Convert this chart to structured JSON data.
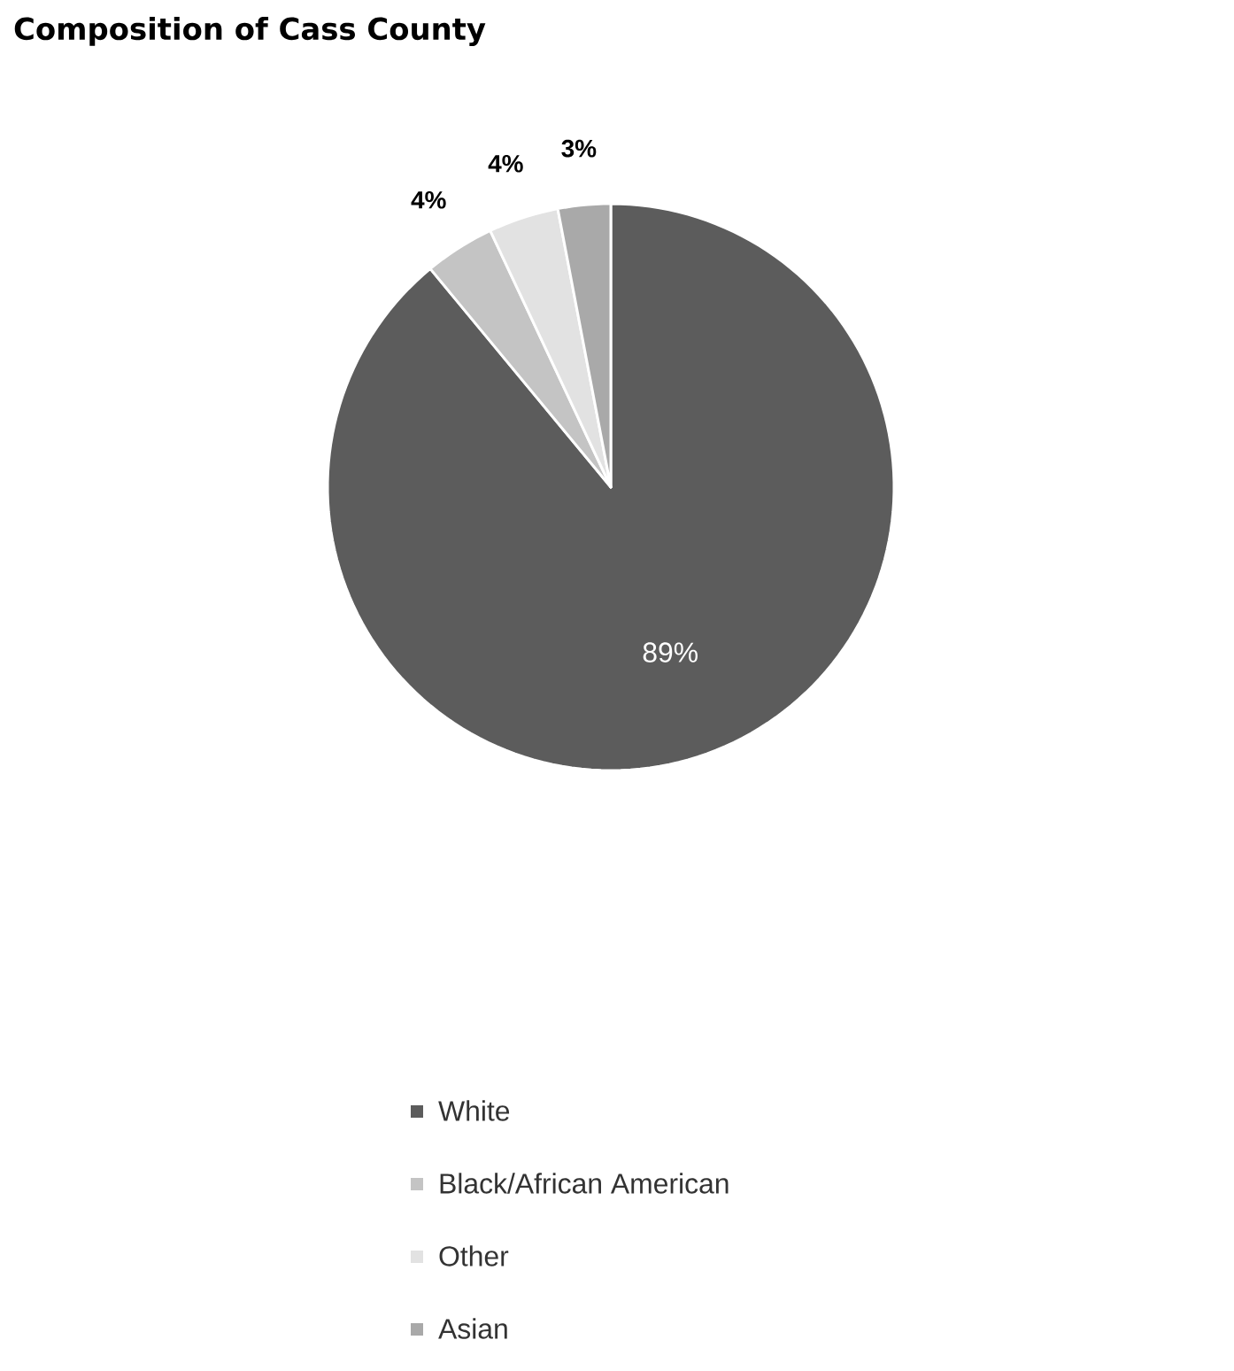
{
  "chart_data": {
    "type": "pie",
    "title": "Composition of Cass County",
    "categories": [
      "White",
      "Black/African American",
      "Other",
      "Asian"
    ],
    "values": [
      89,
      4,
      4,
      3
    ],
    "colors": [
      "#5c5c5c",
      "#c4c4c4",
      "#e2e2e2",
      "#a9a9a9"
    ],
    "value_labels": [
      "89%",
      "4%",
      "4%",
      "3%"
    ],
    "legend": "bottom"
  }
}
